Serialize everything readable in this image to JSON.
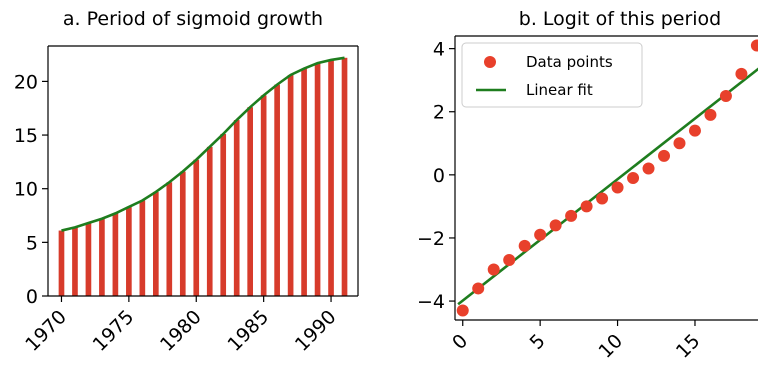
{
  "chart_data": [
    {
      "type": "bar",
      "title": "a. Period of sigmoid growth",
      "xlabel": "",
      "ylabel": "",
      "xlim": [
        1969,
        1992
      ],
      "ylim": [
        0,
        23.3
      ],
      "xticks": [
        1970,
        1975,
        1980,
        1985,
        1990
      ],
      "yticks": [
        0,
        5,
        10,
        15,
        20
      ],
      "grid": false,
      "bar_color": "#d73b2b",
      "curve_color": "#1e7d1e",
      "x": [
        1970,
        1971,
        1972,
        1973,
        1974,
        1975,
        1976,
        1977,
        1978,
        1979,
        1980,
        1981,
        1982,
        1983,
        1984,
        1985,
        1986,
        1987,
        1988,
        1989,
        1990,
        1991
      ],
      "values": [
        6.1,
        6.4,
        6.8,
        7.2,
        7.7,
        8.3,
        8.9,
        9.7,
        10.6,
        11.6,
        12.7,
        13.9,
        15.1,
        16.4,
        17.6,
        18.7,
        19.7,
        20.6,
        21.2,
        21.7,
        22.0,
        22.2
      ]
    },
    {
      "type": "scatter",
      "title": "b. Logit of this period",
      "xlabel": "",
      "ylabel": "",
      "xlim": [
        -0.5,
        19.2
      ],
      "ylim": [
        -4.6,
        4.4
      ],
      "xticks": [
        0,
        5,
        10,
        15
      ],
      "yticks": [
        -4,
        -2,
        0,
        2,
        4
      ],
      "grid": false,
      "legend_position": "top-left",
      "series": [
        {
          "name": "Data points",
          "color": "#e8402b",
          "x": [
            0,
            1,
            2,
            3,
            4,
            5,
            6,
            7,
            8,
            9,
            10,
            11,
            12,
            13,
            14,
            15,
            16,
            17,
            18,
            19
          ],
          "y": [
            -4.3,
            -3.6,
            -3.0,
            -2.7,
            -2.25,
            -1.9,
            -1.6,
            -1.3,
            -1.0,
            -0.75,
            -0.4,
            -0.1,
            0.2,
            0.6,
            1.0,
            1.4,
            1.9,
            2.5,
            3.2,
            4.1
          ]
        },
        {
          "name": "Linear fit",
          "color": "#1e7d1e",
          "x": [
            -0.3,
            19.2
          ],
          "y": [
            -4.1,
            3.4
          ]
        }
      ]
    }
  ]
}
